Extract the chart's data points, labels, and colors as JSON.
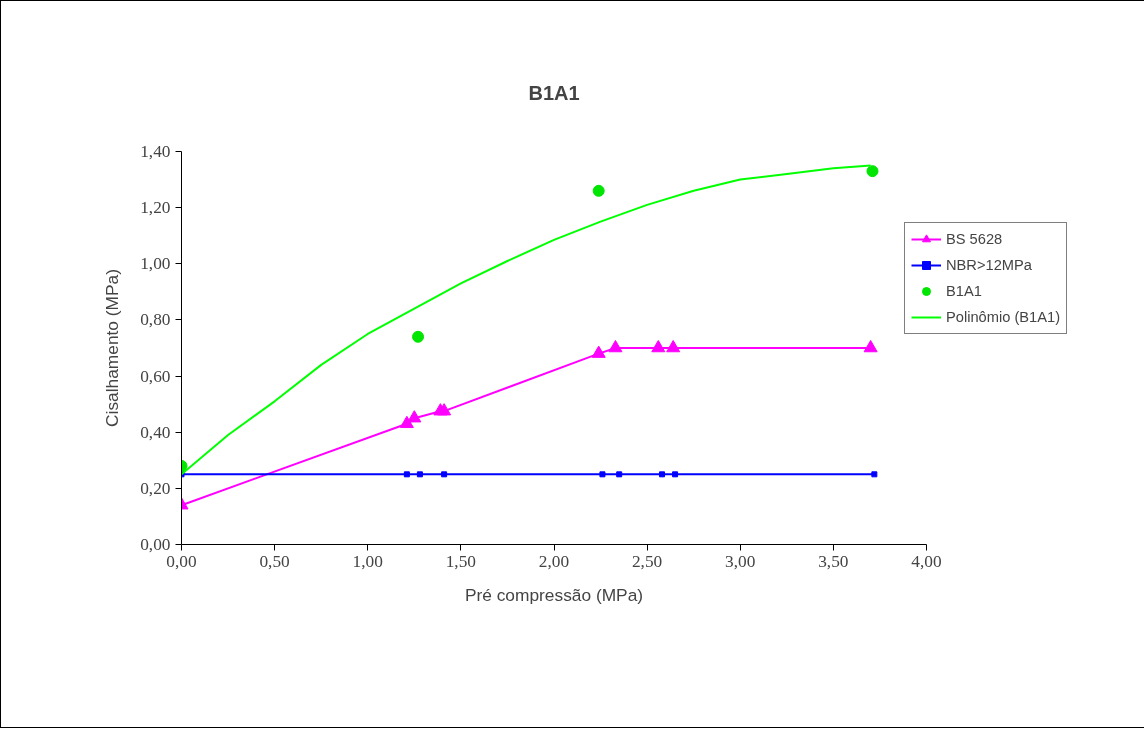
{
  "chart_data": {
    "type": "line",
    "title": "B1A1",
    "xlabel": "Pré compressão (MPa)",
    "ylabel": "Cisalhamento (MPa)",
    "xlim": [
      0,
      4
    ],
    "ylim": [
      0,
      1.4
    ],
    "xticks": [
      {
        "value": 0,
        "label": "0,00"
      },
      {
        "value": 0.5,
        "label": "0,50"
      },
      {
        "value": 1,
        "label": "1,00"
      },
      {
        "value": 1.5,
        "label": "1,50"
      },
      {
        "value": 2,
        "label": "2,00"
      },
      {
        "value": 2.5,
        "label": "2,50"
      },
      {
        "value": 3,
        "label": "3,00"
      },
      {
        "value": 3.5,
        "label": "3,50"
      },
      {
        "value": 4,
        "label": "4,00"
      }
    ],
    "yticks": [
      {
        "value": 0,
        "label": "0,00"
      },
      {
        "value": 0.2,
        "label": "0,20"
      },
      {
        "value": 0.4,
        "label": "0,40"
      },
      {
        "value": 0.6,
        "label": "0,60"
      },
      {
        "value": 0.8,
        "label": "0,80"
      },
      {
        "value": 1.0,
        "label": "1,00"
      },
      {
        "value": 1.2,
        "label": "1,20"
      },
      {
        "value": 1.4,
        "label": "1,40"
      }
    ],
    "grid": false,
    "legend": "right",
    "series": [
      {
        "name": "BS 5628",
        "marker": "triangle",
        "color": "#ff00ff",
        "x": [
          0.0,
          1.21,
          1.25,
          1.39,
          1.41,
          2.24,
          2.33,
          2.56,
          2.64,
          3.7
        ],
        "values": [
          0.14,
          0.43,
          0.45,
          0.475,
          0.475,
          0.68,
          0.7,
          0.7,
          0.7,
          0.7
        ]
      },
      {
        "name": "NBR>12MPa",
        "marker": "square",
        "color": "#0000ff",
        "x": [
          0.0,
          1.21,
          1.28,
          1.41,
          2.26,
          2.35,
          2.58,
          2.65,
          3.72
        ],
        "values": [
          0.25,
          0.25,
          0.25,
          0.25,
          0.25,
          0.25,
          0.25,
          0.25,
          0.25
        ]
      },
      {
        "name": "B1A1",
        "type": "scatter",
        "marker": "circle",
        "color": "#00e600",
        "x": [
          0.0,
          1.27,
          2.24,
          3.71
        ],
        "values": [
          0.28,
          0.74,
          1.26,
          1.33
        ]
      },
      {
        "name": "Polinômio (B1A1)",
        "marker": "none",
        "color": "#00ff00",
        "x": [
          0.0,
          0.25,
          0.5,
          0.75,
          1.0,
          1.25,
          1.5,
          1.75,
          2.0,
          2.25,
          2.5,
          2.75,
          3.0,
          3.25,
          3.5,
          3.7
        ],
        "values": [
          0.25,
          0.39,
          0.51,
          0.64,
          0.75,
          0.84,
          0.93,
          1.01,
          1.085,
          1.15,
          1.21,
          1.26,
          1.3,
          1.32,
          1.34,
          1.35
        ]
      }
    ]
  }
}
